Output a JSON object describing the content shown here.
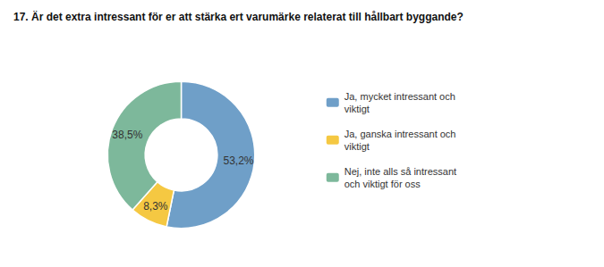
{
  "chart_data": {
    "type": "pie",
    "title": "17. Är det extra intressant för er att stärka ert varumärke relaterat till hållbart byggande?",
    "categories": [
      "Ja, mycket intressant och\nviktigt",
      "Ja, ganska intressant och\nviktigt",
      "Nej, inte alls så intressant\noch viktigt för oss"
    ],
    "values": [
      53.2,
      8.3,
      38.5
    ],
    "value_labels": [
      "53,2%",
      "8,3%",
      "38,5%"
    ],
    "colors": [
      "#6f9fc8",
      "#f5c842",
      "#7db89b"
    ],
    "data_labels": true,
    "legend": "right"
  }
}
